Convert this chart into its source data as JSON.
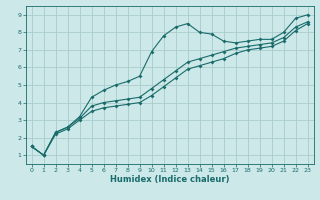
{
  "xlabel": "Humidex (Indice chaleur)",
  "ylabel": "",
  "bg_color": "#cce8e8",
  "grid_color": "#aacccc",
  "line_color": "#1a6b6b",
  "xlim": [
    -0.5,
    23.5
  ],
  "ylim": [
    0.5,
    9.5
  ],
  "xticks": [
    0,
    1,
    2,
    3,
    4,
    5,
    6,
    7,
    8,
    9,
    10,
    11,
    12,
    13,
    14,
    15,
    16,
    17,
    18,
    19,
    20,
    21,
    22,
    23
  ],
  "yticks": [
    1,
    2,
    3,
    4,
    5,
    6,
    7,
    8,
    9
  ],
  "line1_x": [
    0,
    1,
    2,
    3,
    4,
    5,
    6,
    7,
    8,
    9,
    10,
    11,
    12,
    13,
    14,
    15,
    16,
    17,
    18,
    19,
    20,
    21,
    22,
    23
  ],
  "line1_y": [
    1.5,
    1.0,
    2.3,
    2.6,
    3.2,
    4.3,
    4.7,
    5.0,
    5.2,
    5.5,
    6.9,
    7.8,
    8.3,
    8.5,
    8.0,
    7.9,
    7.5,
    7.4,
    7.5,
    7.6,
    7.6,
    8.0,
    8.8,
    9.0
  ],
  "line2_x": [
    0,
    1,
    2,
    3,
    4,
    5,
    6,
    7,
    8,
    9,
    10,
    11,
    12,
    13,
    14,
    15,
    16,
    17,
    18,
    19,
    20,
    21,
    22,
    23
  ],
  "line2_y": [
    1.5,
    1.0,
    2.3,
    2.6,
    3.1,
    3.8,
    4.0,
    4.1,
    4.2,
    4.3,
    4.8,
    5.3,
    5.8,
    6.3,
    6.5,
    6.7,
    6.9,
    7.1,
    7.2,
    7.3,
    7.4,
    7.7,
    8.3,
    8.6
  ],
  "line3_x": [
    0,
    1,
    2,
    3,
    4,
    5,
    6,
    7,
    8,
    9,
    10,
    11,
    12,
    13,
    14,
    15,
    16,
    17,
    18,
    19,
    20,
    21,
    22,
    23
  ],
  "line3_y": [
    1.5,
    1.0,
    2.2,
    2.5,
    3.0,
    3.5,
    3.7,
    3.8,
    3.9,
    4.0,
    4.4,
    4.9,
    5.4,
    5.9,
    6.1,
    6.3,
    6.5,
    6.8,
    7.0,
    7.1,
    7.2,
    7.5,
    8.1,
    8.5
  ],
  "tick_fontsize": 4.5,
  "xlabel_fontsize": 6.0
}
